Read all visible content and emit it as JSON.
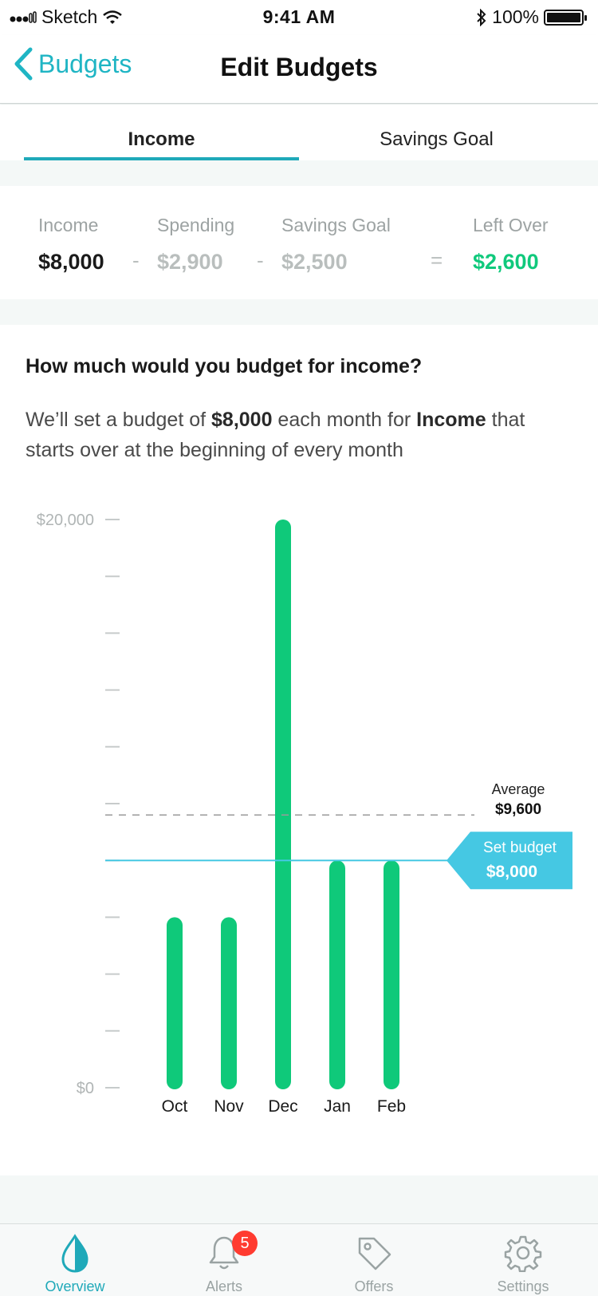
{
  "status_bar": {
    "carrier": "Sketch",
    "time": "9:41 AM",
    "battery": "100%"
  },
  "nav": {
    "back_label": "Budgets",
    "title": "Edit Budgets"
  },
  "tabs": [
    {
      "label": "Income",
      "active": true
    },
    {
      "label": "Savings Goal",
      "active": false
    }
  ],
  "summary": {
    "items": [
      {
        "label": "Income",
        "value": "$8,000"
      },
      {
        "label": "Spending",
        "value": "$2,900"
      },
      {
        "label": "Savings Goal",
        "value": "$2,500"
      },
      {
        "label": "Left Over",
        "value": "$2,600"
      }
    ],
    "operators": [
      "-",
      "-",
      "="
    ],
    "colors": {
      "left_over": "#10c97c"
    }
  },
  "question": "How much would you budget for income?",
  "description": {
    "part1": "We’ll set a budget of ",
    "amount": "$8,000",
    "part2": " each month for ",
    "category": "Income",
    "part3": " that starts over at the beginning of every month"
  },
  "chart_data": {
    "type": "bar",
    "categories": [
      "Oct",
      "Nov",
      "Dec",
      "Jan",
      "Feb"
    ],
    "values": [
      6000,
      6000,
      20000,
      8000,
      8000
    ],
    "ylim": [
      0,
      20000
    ],
    "y_tick_labels": {
      "top": "$20,000",
      "bottom": "$0"
    },
    "y_tick_count": 11,
    "average": {
      "label": "Average",
      "value_label": "$9,600",
      "value": 9600
    },
    "budget": {
      "label": "Set budget",
      "value_label": "$8,000",
      "value": 8000
    },
    "colors": {
      "bar": "#0fc97a",
      "budget": "#45c8e3",
      "average": "#9a9a9a"
    }
  },
  "tab_bar": {
    "items": [
      {
        "label": "Overview",
        "icon": "drop-icon",
        "active": true
      },
      {
        "label": "Alerts",
        "icon": "bell-icon",
        "badge": "5"
      },
      {
        "label": "Offers",
        "icon": "tag-icon"
      },
      {
        "label": "Settings",
        "icon": "gear-icon"
      }
    ]
  }
}
